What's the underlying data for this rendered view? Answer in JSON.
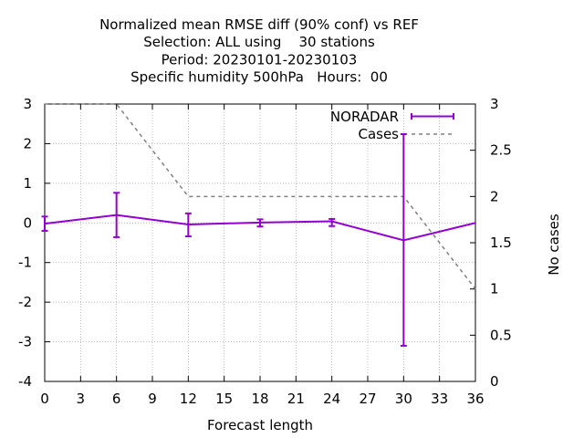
{
  "chart_data": {
    "type": "line",
    "title_lines": [
      "Normalized mean RMSE diff (90% conf) vs REF",
      "Selection: ALL using    30 stations",
      "Period: 20230101-20230103",
      "Specific humidity 500hPa   Hours:  00"
    ],
    "xlabel": "Forecast length",
    "ylabel": "",
    "y2label": "No cases",
    "xlim": [
      0,
      36
    ],
    "ylim": [
      -4,
      3
    ],
    "y2lim": [
      0,
      3
    ],
    "xticks": [
      "0",
      "3",
      "6",
      "9",
      "12",
      "15",
      "18",
      "21",
      "24",
      "27",
      "30",
      "33",
      "36"
    ],
    "yticks": [
      "3",
      "2",
      "1",
      "0",
      "-1",
      "-2",
      "-3",
      "-4"
    ],
    "y2ticks": [
      "3",
      "2.5",
      "2",
      "1.5",
      "1",
      "0.5",
      "0"
    ],
    "grid": true,
    "legend_position": "top-right",
    "series": [
      {
        "name": "NORADAR",
        "color": "#9400d3",
        "axis": "y1",
        "x": [
          0,
          6,
          12,
          18,
          24,
          30,
          36
        ],
        "y": [
          -0.02,
          0.2,
          -0.04,
          0.01,
          0.04,
          -0.44,
          0.0
        ],
        "err_low": [
          -0.2,
          -0.36,
          -0.34,
          -0.09,
          -0.08,
          -3.1,
          0.0
        ],
        "err_high": [
          0.16,
          0.76,
          0.24,
          0.09,
          0.1,
          2.24,
          0.0
        ]
      },
      {
        "name": "Cases",
        "color": "#808080",
        "axis": "y2",
        "dashed": true,
        "x": [
          0,
          6,
          12,
          18,
          24,
          30,
          36
        ],
        "y": [
          3,
          3,
          2,
          2,
          2,
          2,
          1
        ]
      }
    ]
  }
}
